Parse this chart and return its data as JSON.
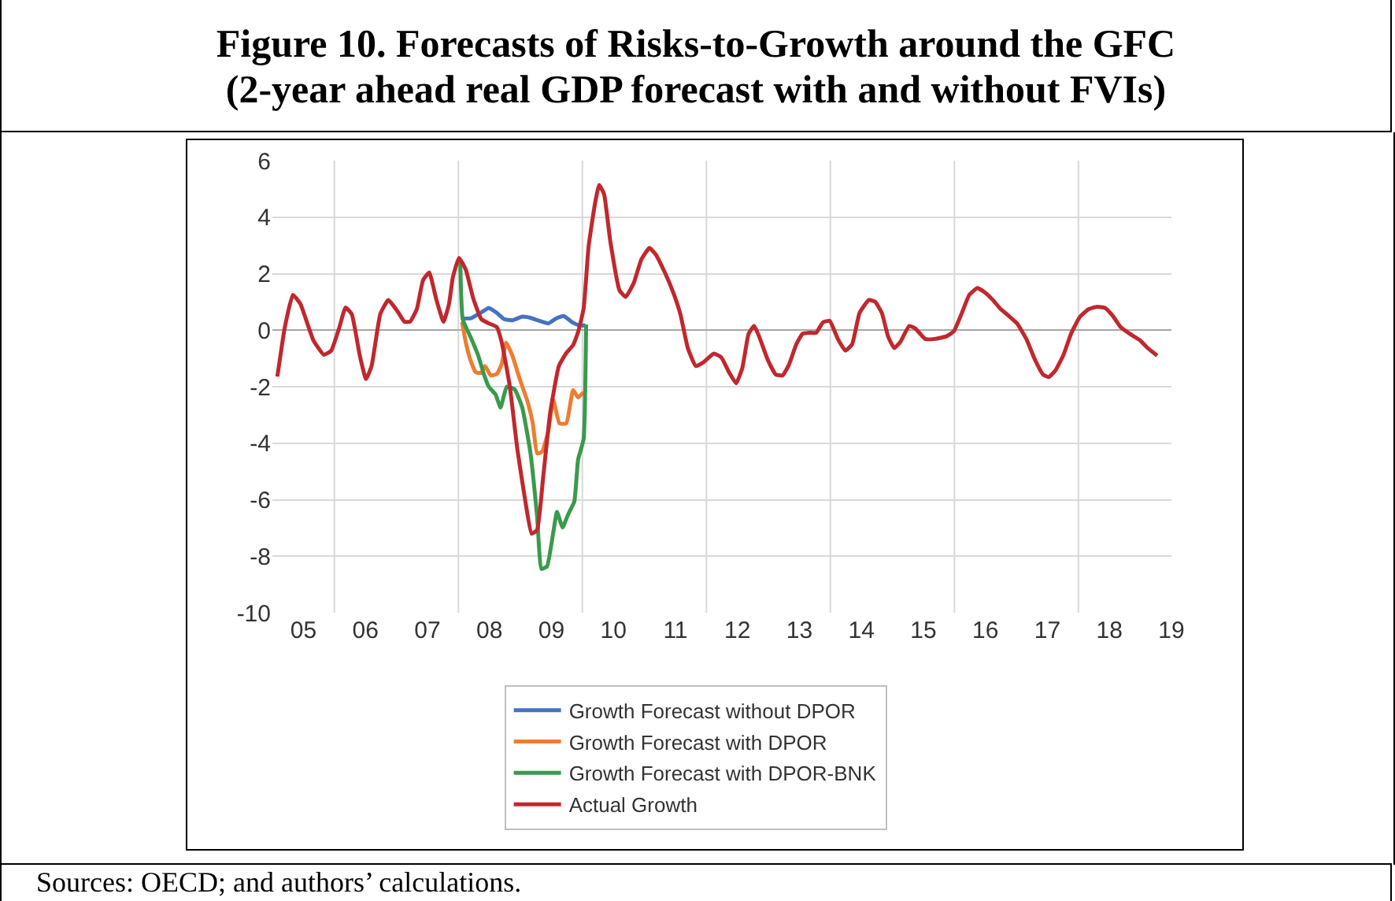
{
  "chart_data": {
    "type": "line",
    "title": "Figure 10. Forecasts of Risks-to-Growth around the GFC\n(2-year ahead real GDP forecast with and without FVIs)",
    "annotations": [
      "Sources: OECD; and authors’ calculations."
    ],
    "xlim": [
      2004.5,
      2019
    ],
    "xticks": [
      {
        "value": 2005,
        "label": "05"
      },
      {
        "value": 2005.5,
        "label": null
      },
      {
        "value": 2006,
        "label": "06"
      },
      {
        "value": 2007,
        "label": "07"
      },
      {
        "value": 2007.5,
        "label": null
      },
      {
        "value": 2008,
        "label": "08"
      },
      {
        "value": 2009,
        "label": "09"
      },
      {
        "value": 2009.5,
        "label": null
      },
      {
        "value": 2010,
        "label": "10"
      },
      {
        "value": 2011,
        "label": "11"
      },
      {
        "value": 2011.5,
        "label": null
      },
      {
        "value": 2012,
        "label": "12"
      },
      {
        "value": 2013,
        "label": "13"
      },
      {
        "value": 2013.5,
        "label": null
      },
      {
        "value": 2014,
        "label": "14"
      },
      {
        "value": 2015,
        "label": "15"
      },
      {
        "value": 2015.5,
        "label": null
      },
      {
        "value": 2016,
        "label": "16"
      },
      {
        "value": 2017,
        "label": "17"
      },
      {
        "value": 2017.5,
        "label": null
      },
      {
        "value": 2018,
        "label": "18"
      },
      {
        "value": 2019,
        "label": "19"
      }
    ],
    "ylim": [
      -10,
      6
    ],
    "yticks": [
      -10,
      -8,
      -6,
      -4,
      -2,
      0,
      2,
      4,
      6
    ],
    "grid": true,
    "legend": "bottom",
    "marker": "none",
    "line_style": "solid",
    "series": [
      {
        "name": "Growth Forecast without DPOR",
        "color": "#4472c4",
        "x": [
          2007.56,
          2007.7,
          2007.87,
          2007.99,
          2008.12,
          2008.24,
          2008.37,
          2008.53,
          2008.66,
          2008.78,
          2008.95,
          2009.08,
          2009.2,
          2009.33,
          2009.45,
          2009.55
        ],
        "values": [
          0.42,
          0.42,
          0.63,
          0.79,
          0.61,
          0.39,
          0.35,
          0.48,
          0.44,
          0.35,
          0.24,
          0.42,
          0.5,
          0.29,
          0.17,
          0.17
        ]
      },
      {
        "name": "Growth Forecast with DPOR",
        "color": "#ed7d31",
        "x": [
          2007.56,
          2007.62,
          2007.7,
          2007.78,
          2007.87,
          2007.93,
          2008.02,
          2008.12,
          2008.2,
          2008.27,
          2008.37,
          2008.49,
          2008.62,
          2008.7,
          2008.77,
          2008.85,
          2008.95,
          2009.03,
          2009.13,
          2009.24,
          2009.35,
          2009.43,
          2009.52
        ],
        "values": [
          0.29,
          -0.44,
          -1.09,
          -1.49,
          -1.51,
          -1.27,
          -1.6,
          -1.55,
          -1.18,
          -0.44,
          -0.9,
          -1.73,
          -2.56,
          -3.3,
          -4.36,
          -4.3,
          -3.57,
          -2.47,
          -3.3,
          -3.3,
          -2.12,
          -2.38,
          -2.19
        ]
      },
      {
        "name": "Growth Forecast with DPOR-BNK",
        "color": "#3a9a4c",
        "x": [
          2007.53,
          2007.57,
          2007.7,
          2007.82,
          2007.91,
          2007.99,
          2008.1,
          2008.18,
          2008.28,
          2008.41,
          2008.53,
          2008.66,
          2008.77,
          2008.84,
          2008.93,
          2009.03,
          2009.09,
          2009.18,
          2009.27,
          2009.37,
          2009.43,
          2009.52,
          2009.56
        ],
        "values": [
          2.41,
          0.39,
          -0.26,
          -0.9,
          -1.55,
          -2.0,
          -2.28,
          -2.74,
          -2.0,
          -2.1,
          -2.74,
          -4.31,
          -6.61,
          -8.45,
          -8.36,
          -7.16,
          -6.43,
          -6.98,
          -6.52,
          -6.06,
          -4.59,
          -3.85,
          0.2
        ]
      },
      {
        "name": "Actual Growth",
        "color": "#c0282d",
        "x": [
          2004.58,
          2004.7,
          2004.83,
          2004.95,
          2005.16,
          2005.33,
          2005.45,
          2005.58,
          2005.68,
          2005.78,
          2005.91,
          2006.01,
          2006.1,
          2006.24,
          2006.37,
          2006.52,
          2006.63,
          2006.72,
          2006.83,
          2006.93,
          2007.03,
          2007.14,
          2007.26,
          2007.35,
          2007.41,
          2007.51,
          2007.62,
          2007.74,
          2007.87,
          2007.99,
          2008.12,
          2008.2,
          2008.33,
          2008.45,
          2008.58,
          2008.68,
          2008.77,
          2008.87,
          2008.98,
          2009.12,
          2009.24,
          2009.35,
          2009.43,
          2009.52,
          2009.6,
          2009.7,
          2009.77,
          2009.85,
          2009.95,
          2010.1,
          2010.2,
          2010.33,
          2010.45,
          2010.58,
          2010.68,
          2010.83,
          2010.97,
          2011.08,
          2011.2,
          2011.33,
          2011.45,
          2011.62,
          2011.74,
          2011.87,
          2011.98,
          2012.08,
          2012.18,
          2012.27,
          2012.35,
          2012.49,
          2012.62,
          2012.73,
          2012.83,
          2012.95,
          2013.05,
          2013.16,
          2013.27,
          2013.38,
          2013.49,
          2013.62,
          2013.74,
          2013.85,
          2013.97,
          2014.12,
          2014.22,
          2014.33,
          2014.43,
          2014.53,
          2014.63,
          2014.77,
          2014.87,
          2015.03,
          2015.18,
          2015.37,
          2015.49,
          2015.62,
          2015.74,
          2015.87,
          2015.99,
          2016.12,
          2016.24,
          2016.37,
          2016.51,
          2016.66,
          2016.8,
          2016.93,
          2017.02,
          2017.13,
          2017.26,
          2017.38,
          2017.52,
          2017.66,
          2017.8,
          2017.93,
          2018.05,
          2018.18,
          2018.33,
          2018.49,
          2018.62,
          2018.77
        ],
        "values": [
          -1.64,
          0.1,
          1.25,
          0.94,
          -0.35,
          -0.87,
          -0.72,
          0.1,
          0.8,
          0.57,
          -0.9,
          -1.73,
          -1.27,
          0.57,
          1.07,
          0.66,
          0.3,
          0.3,
          0.75,
          1.77,
          2.04,
          1.12,
          0.3,
          0.94,
          1.86,
          2.56,
          2.14,
          1.12,
          0.39,
          0.24,
          0.11,
          -0.44,
          -2.0,
          -4.2,
          -6.06,
          -7.2,
          -7.07,
          -5.14,
          -2.93,
          -1.27,
          -0.81,
          -0.53,
          -0.07,
          0.76,
          2.96,
          4.44,
          5.14,
          4.81,
          3.15,
          1.4,
          1.18,
          1.68,
          2.5,
          2.91,
          2.69,
          2.04,
          1.31,
          0.57,
          -0.63,
          -1.27,
          -1.14,
          -0.83,
          -0.96,
          -1.51,
          -1.88,
          -1.33,
          -0.13,
          0.15,
          -0.22,
          -1.05,
          -1.57,
          -1.6,
          -1.23,
          -0.5,
          -0.13,
          -0.09,
          -0.09,
          0.28,
          0.33,
          -0.31,
          -0.72,
          -0.5,
          0.61,
          1.07,
          1.01,
          0.61,
          -0.22,
          -0.63,
          -0.41,
          0.15,
          0.06,
          -0.31,
          -0.31,
          -0.22,
          -0.04,
          0.61,
          1.25,
          1.49,
          1.34,
          1.07,
          0.76,
          0.52,
          0.24,
          -0.31,
          -1.05,
          -1.57,
          -1.66,
          -1.42,
          -0.87,
          -0.13,
          0.46,
          0.74,
          0.83,
          0.79,
          0.52,
          0.11,
          -0.13,
          -0.35,
          -0.64,
          -0.9
        ]
      }
    ]
  }
}
